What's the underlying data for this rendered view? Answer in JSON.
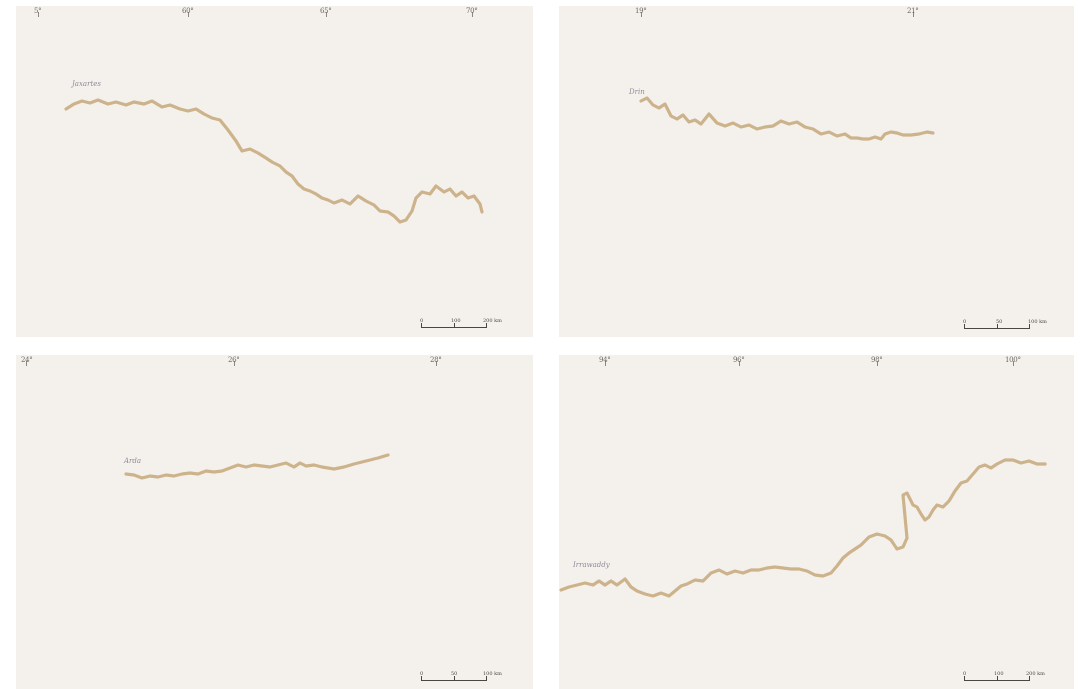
{
  "colors": {
    "page": "#ffffff",
    "sheet": "#f4f1ec",
    "river": "#cdb38b",
    "label": "#8d8a9a",
    "ink": "#4a4642"
  },
  "panels": [
    {
      "id": "top-left",
      "river_label": "Jaxartes",
      "ticks": [
        "5°",
        "60°",
        "65°",
        "70°"
      ],
      "scale": {
        "start": "0",
        "mid": "100",
        "end": "200 km"
      }
    },
    {
      "id": "top-right",
      "river_label": "Drin",
      "ticks": [
        "19°",
        "21°"
      ],
      "scale": {
        "start": "0",
        "mid": "50",
        "end": "100 km"
      }
    },
    {
      "id": "bottom-left",
      "river_label": "Arda",
      "ticks": [
        "24°",
        "26°",
        "28°"
      ],
      "scale": {
        "start": "0",
        "mid": "50",
        "end": "100 km"
      }
    },
    {
      "id": "bottom-right",
      "river_label": "Irrawaddy",
      "ticks": [
        "94°",
        "96°",
        "98°",
        "100°"
      ],
      "scale": {
        "start": "0",
        "mid": "100",
        "end": "200 km"
      }
    }
  ]
}
